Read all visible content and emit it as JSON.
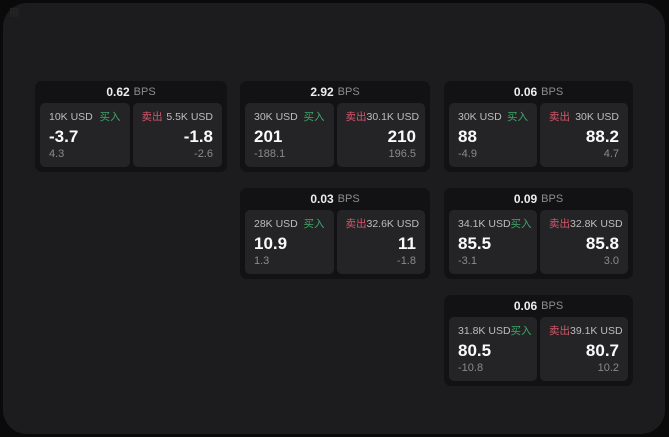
{
  "app": {
    "corner_icon": "▦"
  },
  "labels": {
    "bps": "BPS",
    "buy": "买入",
    "sell": "卖出"
  },
  "colors": {
    "buy_green": "#3ea768",
    "sell_red": "#d4566a",
    "panel_bg": "#1c1c1e",
    "card_bg": "#121214",
    "subpanel_bg": "#242427"
  },
  "cards": [
    {
      "bps": "0.62",
      "col": 0,
      "row": 0,
      "buy": {
        "amount": "10K USD",
        "value": "-3.7",
        "sub": "4.3"
      },
      "sell": {
        "amount": "5.5K USD",
        "value": "-1.8",
        "sub": "-2.6"
      }
    },
    {
      "bps": "2.92",
      "col": 1,
      "row": 0,
      "buy": {
        "amount": "30K USD",
        "value": "201",
        "sub": "-188.1"
      },
      "sell": {
        "amount": "30.1K USD",
        "value": "210",
        "sub": "196.5"
      }
    },
    {
      "bps": "0.06",
      "col": 2,
      "row": 0,
      "buy": {
        "amount": "30K USD",
        "value": "88",
        "sub": "-4.9"
      },
      "sell": {
        "amount": "30K USD",
        "value": "88.2",
        "sub": "4.7"
      }
    },
    {
      "bps": "0.03",
      "col": 1,
      "row": 1,
      "buy": {
        "amount": "28K USD",
        "value": "10.9",
        "sub": "1.3"
      },
      "sell": {
        "amount": "32.6K USD",
        "value": "11",
        "sub": "-1.8"
      }
    },
    {
      "bps": "0.09",
      "col": 2,
      "row": 1,
      "buy": {
        "amount": "34.1K USD",
        "value": "85.5",
        "sub": "-3.1"
      },
      "sell": {
        "amount": "32.8K USD",
        "value": "85.8",
        "sub": "3.0"
      }
    },
    {
      "bps": "0.06",
      "col": 2,
      "row": 2,
      "buy": {
        "amount": "31.8K USD",
        "value": "80.5",
        "sub": "-10.8"
      },
      "sell": {
        "amount": "39.1K USD",
        "value": "80.7",
        "sub": "10.2"
      }
    }
  ]
}
